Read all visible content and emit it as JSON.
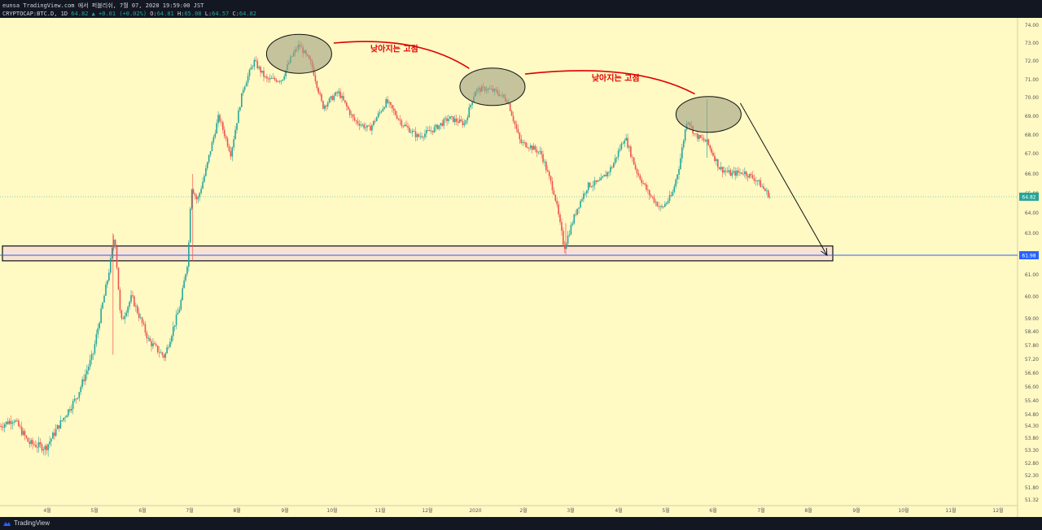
{
  "header": {
    "publish_line": "eunsa TradingView.com 에서 퍼블리쉬, 7월 07, 2020 19:59:00 JST",
    "symbol": "CRYPTOCAP:BTC.D, 1D",
    "last": "64.82",
    "arrow": "▲",
    "change": "+0.01 (+0.02%)",
    "o_label": "O:",
    "o_value": "64.81",
    "h_label": "H:",
    "h_value": "65.08",
    "l_label": "L:",
    "l_value": "64.57",
    "c_label": "C:",
    "c_value": "64.82"
  },
  "footer": {
    "brand": "TradingView",
    "logo_icon": "tradingview-logo-icon"
  },
  "colors": {
    "background": "#fff9c4",
    "up": "#26a69a",
    "down": "#ef5350",
    "support_line": "#2962ff",
    "annotation": "#e00000",
    "ellipse": "#9e9e82",
    "price_tag": "#26a69a"
  },
  "chart_data": {
    "type": "candlestick",
    "y_ticks": [
      74.0,
      73.0,
      72.0,
      71.0,
      70.0,
      69.0,
      68.0,
      67.0,
      66.0,
      65.0,
      64.0,
      63.0,
      62.0,
      61.0,
      60.0,
      59.0,
      58.4,
      57.8,
      57.2,
      56.6,
      56.0,
      55.4,
      54.8,
      54.3,
      53.8,
      53.3,
      52.8,
      52.3,
      51.8,
      51.32
    ],
    "x_ticks": [
      "4월",
      "5월",
      "6월",
      "7월",
      "8월",
      "9월",
      "10월",
      "11월",
      "12월",
      "2020",
      "2월",
      "3월",
      "4월",
      "5월",
      "6월",
      "7월",
      "8월",
      "9월",
      "10월",
      "11월",
      "12월"
    ],
    "last_price": 64.82,
    "support_level": 61.98,
    "support_zone": [
      61.7,
      62.4
    ],
    "annotations": [
      "낮아지는 고점",
      "낮아지는 고점"
    ],
    "path_points": [
      [
        "2019-03-01",
        54.3
      ],
      [
        "2019-03-10",
        54.6
      ],
      [
        "2019-03-20",
        53.6
      ],
      [
        "2019-03-31",
        53.4
      ],
      [
        "2019-04-10",
        54.5
      ],
      [
        "2019-04-20",
        55.6
      ],
      [
        "2019-04-30",
        57.4
      ],
      [
        "2019-05-10",
        61.0
      ],
      [
        "2019-05-14",
        63.0
      ],
      [
        "2019-05-18",
        58.8
      ],
      [
        "2019-05-25",
        60.0
      ],
      [
        "2019-06-05",
        58.0
      ],
      [
        "2019-06-15",
        57.3
      ],
      [
        "2019-06-25",
        59.6
      ],
      [
        "2019-06-30",
        61.8
      ],
      [
        "2019-07-02",
        65.4
      ],
      [
        "2019-07-06",
        64.6
      ],
      [
        "2019-07-12",
        66.3
      ],
      [
        "2019-07-20",
        69.0
      ],
      [
        "2019-07-28",
        67.0
      ],
      [
        "2019-08-05",
        70.5
      ],
      [
        "2019-08-12",
        72.0
      ],
      [
        "2019-08-20",
        71.0
      ],
      [
        "2019-08-30",
        71.0
      ],
      [
        "2019-09-05",
        72.2
      ],
      [
        "2019-09-10",
        72.9
      ],
      [
        "2019-09-18",
        71.8
      ],
      [
        "2019-09-25",
        69.5
      ],
      [
        "2019-10-05",
        70.3
      ],
      [
        "2019-10-15",
        68.8
      ],
      [
        "2019-10-25",
        68.3
      ],
      [
        "2019-11-05",
        69.8
      ],
      [
        "2019-11-15",
        68.6
      ],
      [
        "2019-11-25",
        67.9
      ],
      [
        "2019-12-05",
        68.3
      ],
      [
        "2019-12-15",
        68.9
      ],
      [
        "2019-12-25",
        68.6
      ],
      [
        "2020-01-01",
        70.4
      ],
      [
        "2020-01-08",
        70.5
      ],
      [
        "2020-01-15",
        70.3
      ],
      [
        "2020-01-22",
        69.8
      ],
      [
        "2020-01-30",
        67.6
      ],
      [
        "2020-02-05",
        67.4
      ],
      [
        "2020-02-12",
        67.0
      ],
      [
        "2020-02-20",
        65.0
      ],
      [
        "2020-02-26",
        62.3
      ],
      [
        "2020-03-05",
        64.2
      ],
      [
        "2020-03-12",
        65.4
      ],
      [
        "2020-03-20",
        65.6
      ],
      [
        "2020-03-28",
        66.4
      ],
      [
        "2020-04-05",
        67.9
      ],
      [
        "2020-04-12",
        66.2
      ],
      [
        "2020-04-20",
        65.0
      ],
      [
        "2020-04-28",
        64.2
      ],
      [
        "2020-05-05",
        64.9
      ],
      [
        "2020-05-10",
        66.5
      ],
      [
        "2020-05-15",
        68.9
      ],
      [
        "2020-05-20",
        68.0
      ],
      [
        "2020-05-28",
        67.6
      ],
      [
        "2020-06-05",
        66.3
      ],
      [
        "2020-06-12",
        66.0
      ],
      [
        "2020-06-20",
        66.1
      ],
      [
        "2020-06-28",
        65.7
      ],
      [
        "2020-07-07",
        64.82
      ]
    ]
  }
}
